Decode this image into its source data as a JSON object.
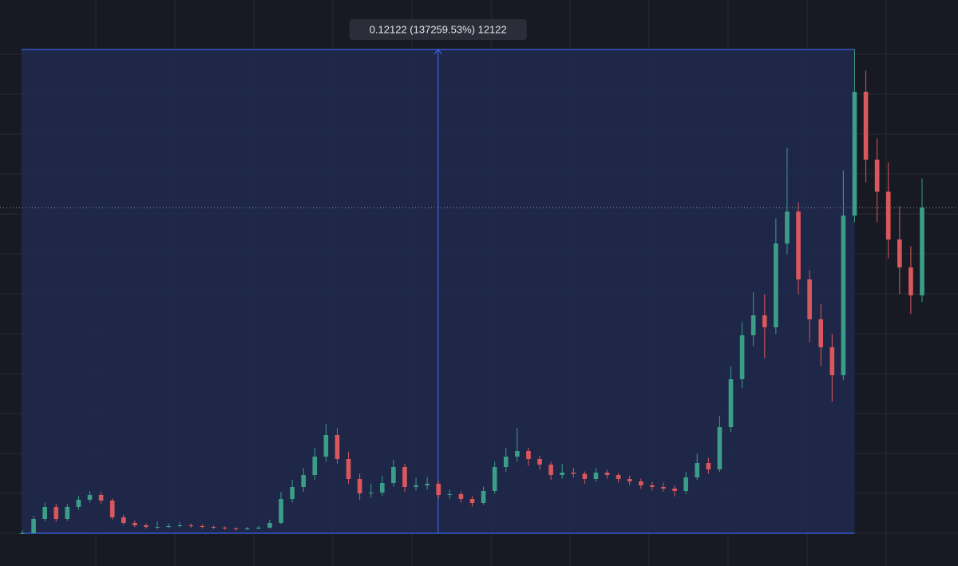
{
  "chart_data": {
    "type": "candlestick",
    "ylim": [
      -0.0081,
      0.1337
    ],
    "up_color": "#3a9e88",
    "down_color": "#d9575d",
    "measure": {
      "label": "0.12122 (137259.53%) 12122",
      "from": 0.0001,
      "to": 0.1213
    },
    "open": [
      0.0001,
      0.0001,
      0.0037,
      0.0067,
      0.0037,
      0.0067,
      0.0085,
      0.0097,
      0.0083,
      0.0041,
      0.0027,
      0.0021,
      0.0017,
      0.0017,
      0.0019,
      0.0021,
      0.0019,
      0.0017,
      0.0015,
      0.0013,
      0.0011,
      0.0013,
      0.0015,
      0.0027,
      0.0087,
      0.0117,
      0.0147,
      0.0193,
      0.0247,
      0.0187,
      0.0137,
      0.0101,
      0.0103,
      0.0127,
      0.0167,
      0.0117,
      0.0121,
      0.0125,
      0.0097,
      0.0099,
      0.0087,
      0.0077,
      0.0107,
      0.0167,
      0.0193,
      0.0207,
      0.0187,
      0.0173,
      0.0147,
      0.0153,
      0.015,
      0.0137,
      0.0153,
      0.0147,
      0.0137,
      0.0131,
      0.0121,
      0.0117,
      0.0113,
      0.0107,
      0.0141,
      0.0177,
      0.0161,
      0.0267,
      0.0387,
      0.0497,
      0.0547,
      0.0517,
      0.0727,
      0.0807,
      0.0637,
      0.0537,
      0.0467,
      0.0397,
      0.0797,
      0.1107,
      0.0937,
      0.0857,
      0.0737,
      0.0667,
      0.0597
    ],
    "high": [
      0.0008,
      0.0045,
      0.0078,
      0.0075,
      0.0074,
      0.0095,
      0.0107,
      0.0105,
      0.0088,
      0.0048,
      0.0033,
      0.0026,
      0.0031,
      0.0026,
      0.0029,
      0.0025,
      0.0023,
      0.002,
      0.0018,
      0.0016,
      0.0017,
      0.0019,
      0.0035,
      0.0105,
      0.0135,
      0.0165,
      0.0215,
      0.0275,
      0.0265,
      0.0205,
      0.015,
      0.0125,
      0.0145,
      0.0185,
      0.0175,
      0.014,
      0.0142,
      0.0132,
      0.011,
      0.0106,
      0.0094,
      0.0118,
      0.018,
      0.0215,
      0.0265,
      0.0215,
      0.0195,
      0.018,
      0.0175,
      0.0165,
      0.0156,
      0.0165,
      0.016,
      0.0152,
      0.0145,
      0.0138,
      0.013,
      0.0128,
      0.012,
      0.0155,
      0.02,
      0.019,
      0.0295,
      0.042,
      0.053,
      0.0605,
      0.06,
      0.079,
      0.0967,
      0.083,
      0.066,
      0.0575,
      0.05,
      0.091,
      0.1213,
      0.116,
      0.099,
      0.093,
      0.082,
      0.072,
      0.089
    ],
    "low": [
      0.0001,
      0.0001,
      0.0031,
      0.003,
      0.0032,
      0.006,
      0.0078,
      0.0075,
      0.0036,
      0.0022,
      0.0017,
      0.0013,
      0.0012,
      0.0014,
      0.0016,
      0.0015,
      0.0013,
      0.0012,
      0.001,
      0.0008,
      0.0009,
      0.0011,
      0.0013,
      0.0024,
      0.0078,
      0.0105,
      0.0135,
      0.018,
      0.0175,
      0.0125,
      0.0085,
      0.009,
      0.0095,
      0.0118,
      0.0105,
      0.0108,
      0.011,
      0.0088,
      0.0088,
      0.0078,
      0.0068,
      0.0072,
      0.01,
      0.0155,
      0.018,
      0.017,
      0.016,
      0.0135,
      0.0138,
      0.014,
      0.0125,
      0.013,
      0.0138,
      0.0128,
      0.0122,
      0.0112,
      0.0108,
      0.0105,
      0.0093,
      0.01,
      0.0135,
      0.015,
      0.0155,
      0.0255,
      0.0365,
      0.047,
      0.044,
      0.05,
      0.07,
      0.06,
      0.048,
      0.042,
      0.0331,
      0.0385,
      0.078,
      0.088,
      0.078,
      0.069,
      0.06,
      0.055,
      0.058
    ],
    "close": [
      0.0001,
      0.0037,
      0.0067,
      0.0037,
      0.0067,
      0.0085,
      0.0097,
      0.0083,
      0.0041,
      0.0027,
      0.0021,
      0.0017,
      0.0017,
      0.0019,
      0.0021,
      0.0019,
      0.0017,
      0.0015,
      0.0013,
      0.0011,
      0.0013,
      0.0015,
      0.0027,
      0.0087,
      0.0117,
      0.0147,
      0.0193,
      0.0247,
      0.0187,
      0.0137,
      0.0101,
      0.0103,
      0.0127,
      0.0167,
      0.0117,
      0.0121,
      0.0125,
      0.0097,
      0.0099,
      0.0087,
      0.0077,
      0.0107,
      0.0167,
      0.0193,
      0.0207,
      0.0187,
      0.0173,
      0.0147,
      0.0153,
      0.015,
      0.0137,
      0.0153,
      0.0147,
      0.0137,
      0.0131,
      0.0121,
      0.0117,
      0.0113,
      0.0107,
      0.0141,
      0.0177,
      0.0161,
      0.0267,
      0.0387,
      0.0497,
      0.0547,
      0.0517,
      0.0727,
      0.0807,
      0.0637,
      0.0537,
      0.0467,
      0.0397,
      0.0797,
      0.1107,
      0.0937,
      0.0857,
      0.0737,
      0.0667,
      0.0597,
      0.0817
    ]
  }
}
